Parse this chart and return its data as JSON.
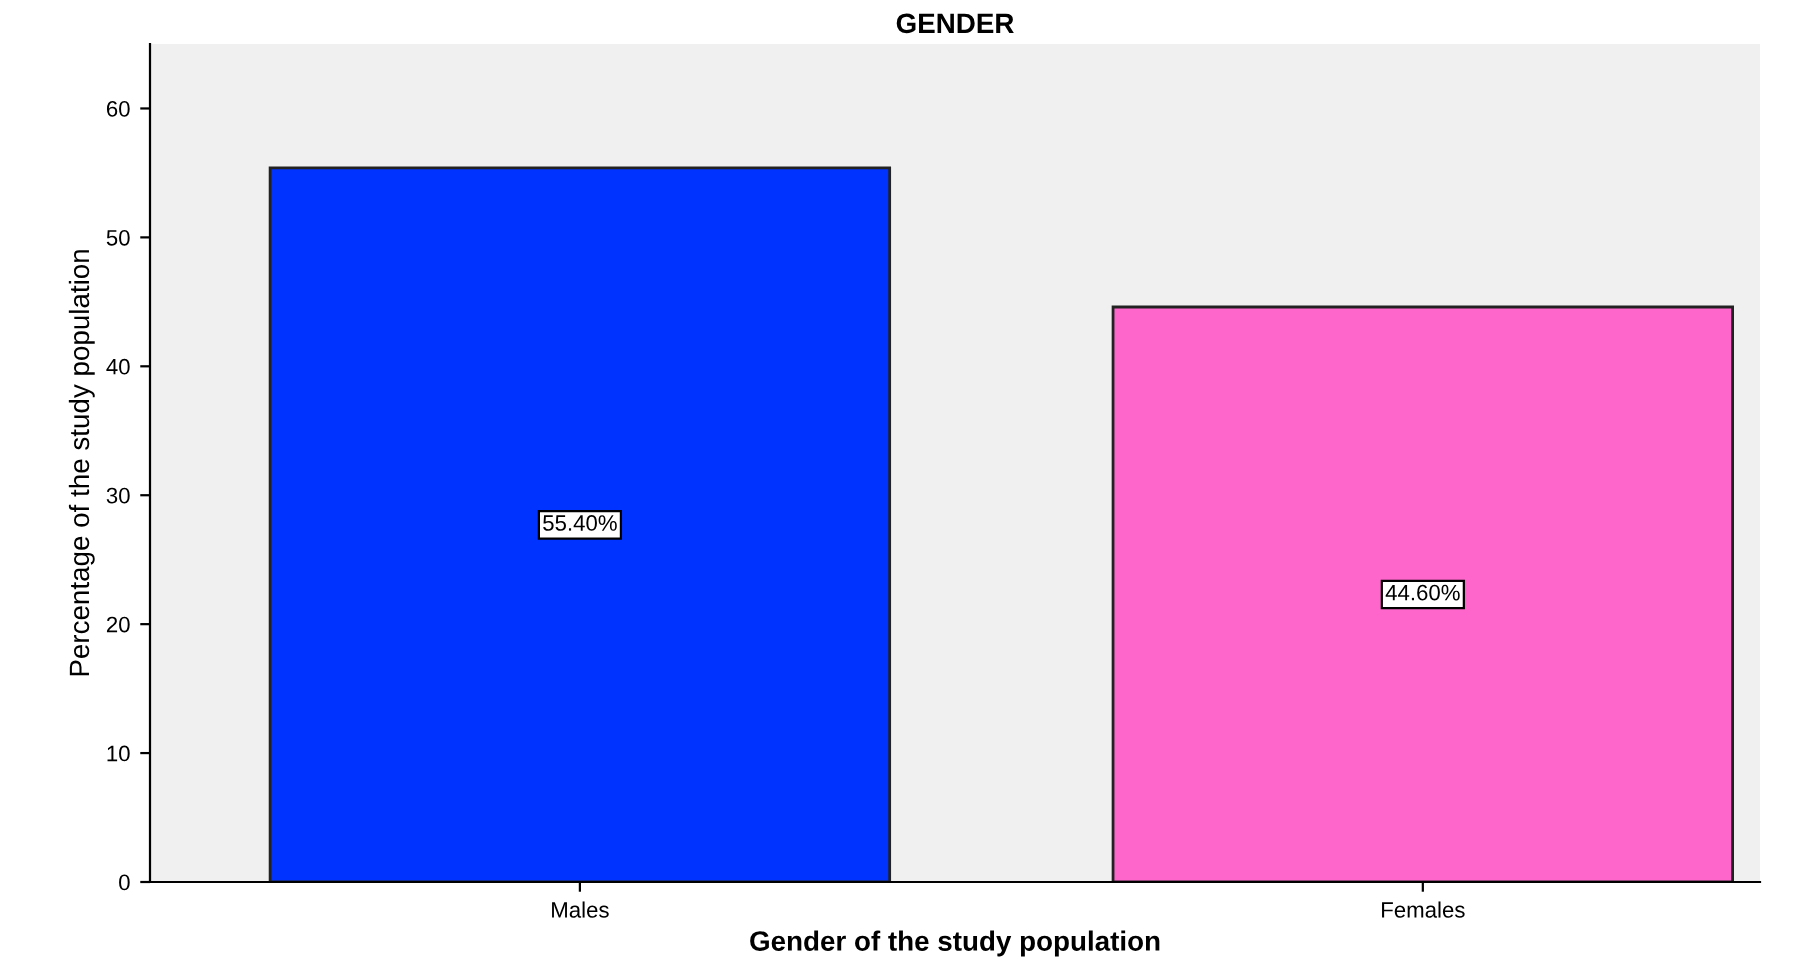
{
  "chart_data": {
    "type": "bar",
    "title": "GENDER",
    "xlabel": "Gender of the study population",
    "ylabel": "Percentage of the study population",
    "categories": [
      "Males",
      "Females"
    ],
    "values": [
      55.4,
      44.6
    ],
    "colors": [
      "#0033ff",
      "#ff66cc"
    ],
    "value_labels": [
      "55.40%",
      "44.60%"
    ],
    "ylim": [
      0,
      65
    ],
    "yticks": [
      0,
      10,
      20,
      30,
      40,
      50,
      60
    ],
    "grid": false,
    "legend": false
  }
}
